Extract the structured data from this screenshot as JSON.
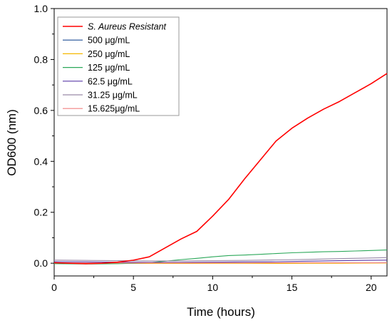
{
  "chart_data": {
    "type": "line",
    "xlabel": "Time (hours)",
    "ylabel": "OD600 (nm)",
    "xlim": [
      0,
      21
    ],
    "ylim": [
      -0.05,
      1.0
    ],
    "x_ticks": [
      0,
      5,
      10,
      15,
      20
    ],
    "x_tick_labels": [
      "0",
      "5",
      "10",
      "15",
      "20"
    ],
    "y_ticks": [
      0.0,
      0.2,
      0.4,
      0.6,
      0.8,
      1.0
    ],
    "y_tick_labels": [
      "0.0",
      "0.2",
      "0.4",
      "0.6",
      "0.8",
      "1.0"
    ],
    "grid": false,
    "legend_position": "top-left",
    "series": [
      {
        "name": "S. Aureus Resistant",
        "italic": true,
        "color": "#ff0000",
        "x": [
          0,
          1,
          2,
          3,
          4,
          5,
          6,
          7,
          8,
          9,
          10,
          11,
          12,
          13,
          14,
          15,
          16,
          17,
          18,
          19,
          20,
          21
        ],
        "y": [
          0.002,
          0.0,
          -0.002,
          0.0,
          0.004,
          0.012,
          0.025,
          0.06,
          0.095,
          0.125,
          0.185,
          0.25,
          0.33,
          0.405,
          0.48,
          0.53,
          0.57,
          0.605,
          0.635,
          0.67,
          0.705,
          0.745
        ]
      },
      {
        "name": "500 μg/mL",
        "color": "#1f4e96",
        "x": [
          0,
          2,
          4,
          6,
          8,
          10,
          12,
          14,
          16,
          18,
          21
        ],
        "y": [
          0.0,
          -0.001,
          -0.001,
          -0.001,
          0.0,
          0.0,
          0.0,
          0.001,
          0.001,
          0.001,
          0.002
        ]
      },
      {
        "name": "250 μg/mL",
        "color": "#f5b800",
        "x": [
          0,
          2,
          4,
          6,
          8,
          10,
          12,
          14,
          16,
          18,
          21
        ],
        "y": [
          0.0,
          0.0,
          0.0,
          -0.001,
          -0.001,
          -0.001,
          -0.001,
          -0.001,
          0.0,
          0.0,
          0.001
        ]
      },
      {
        "name": "125 μg/mL",
        "color": "#2ca85a",
        "x": [
          0,
          2,
          4,
          5,
          6,
          7,
          8,
          9,
          10,
          11,
          12,
          13,
          14,
          15,
          16,
          17,
          18,
          19,
          20,
          21
        ],
        "y": [
          -0.002,
          -0.003,
          -0.002,
          0.0,
          0.002,
          0.008,
          0.014,
          0.019,
          0.025,
          0.03,
          0.032,
          0.035,
          0.038,
          0.041,
          0.043,
          0.045,
          0.046,
          0.048,
          0.05,
          0.052
        ]
      },
      {
        "name": "62.5 μg/mL",
        "color": "#5a3aa8",
        "x": [
          0,
          2,
          4,
          6,
          8,
          10,
          12,
          14,
          16,
          18,
          21
        ],
        "y": [
          0.006,
          0.005,
          0.004,
          0.003,
          0.003,
          0.004,
          0.005,
          0.006,
          0.008,
          0.01,
          0.012
        ]
      },
      {
        "name": "31.25 μg/mL",
        "color": "#9a8aa8",
        "x": [
          0,
          2,
          4,
          6,
          8,
          10,
          12,
          14,
          16,
          18,
          21
        ],
        "y": [
          0.012,
          0.011,
          0.01,
          0.009,
          0.009,
          0.01,
          0.011,
          0.013,
          0.015,
          0.018,
          0.022
        ]
      },
      {
        "name": "15.625μg/mL",
        "color": "#f08080",
        "x": [
          0,
          3,
          6,
          9,
          12,
          15,
          18,
          21
        ],
        "y": [
          0.001,
          0.001,
          0.001,
          0.001,
          0.001,
          0.002,
          0.002,
          0.002
        ]
      }
    ]
  }
}
